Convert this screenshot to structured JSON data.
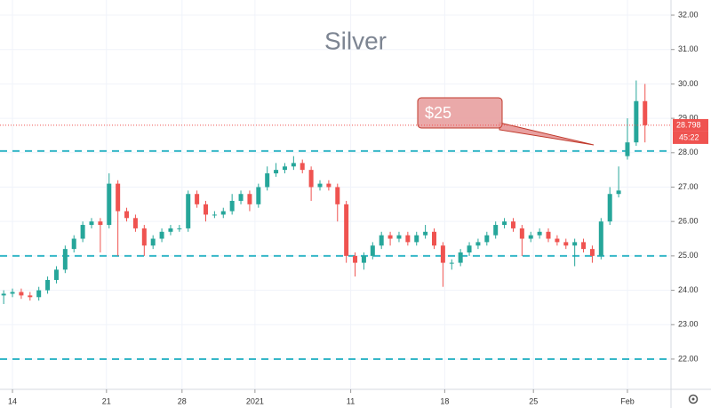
{
  "chart_data": {
    "type": "candlestick",
    "title": "Silver",
    "x": [
      -1,
      0,
      1,
      2,
      3,
      4,
      5,
      6,
      7,
      8,
      9,
      10,
      11,
      12,
      13,
      14,
      15,
      16,
      17,
      18,
      19,
      20,
      21,
      22,
      23,
      24,
      25,
      26,
      27,
      28,
      29,
      30,
      31,
      32,
      33,
      34,
      35,
      36,
      37,
      38,
      39,
      40,
      41,
      42,
      43,
      44,
      45,
      46,
      47,
      48,
      49,
      50,
      51,
      52,
      53,
      54,
      55,
      56,
      57,
      58,
      59,
      60,
      61,
      62,
      63,
      64,
      65,
      66,
      67,
      68,
      69,
      70,
      71,
      72
    ],
    "open": [
      23.85,
      23.9,
      23.95,
      23.85,
      23.8,
      24.0,
      24.3,
      24.6,
      25.2,
      25.5,
      25.9,
      26.0,
      25.9,
      27.1,
      26.3,
      26.1,
      25.8,
      25.3,
      25.5,
      25.7,
      25.8,
      25.8,
      26.8,
      26.5,
      26.2,
      26.2,
      26.3,
      26.6,
      26.8,
      26.5,
      27.0,
      27.4,
      27.5,
      27.6,
      27.7,
      27.5,
      27.0,
      27.1,
      27.0,
      26.5,
      25.0,
      24.8,
      25.0,
      25.3,
      25.6,
      25.5,
      25.6,
      25.4,
      25.6,
      25.7,
      25.3,
      24.8,
      24.8,
      25.1,
      25.3,
      25.4,
      25.6,
      25.9,
      26.0,
      25.8,
      25.5,
      25.6,
      25.7,
      25.5,
      25.4,
      25.3,
      25.4,
      25.2,
      25.0,
      26.0,
      26.8,
      27.9,
      28.3,
      29.5
    ],
    "high": [
      24.0,
      24.05,
      24.05,
      23.95,
      24.1,
      24.4,
      24.7,
      25.3,
      25.6,
      26.0,
      26.1,
      26.1,
      27.4,
      27.2,
      26.4,
      26.2,
      25.9,
      25.6,
      25.8,
      25.9,
      25.9,
      26.9,
      26.9,
      26.6,
      26.3,
      26.4,
      26.8,
      26.9,
      26.9,
      27.1,
      27.6,
      27.7,
      27.7,
      27.9,
      27.8,
      27.6,
      27.2,
      27.2,
      27.1,
      26.6,
      25.1,
      25.1,
      25.4,
      25.7,
      25.7,
      25.7,
      25.7,
      25.7,
      25.9,
      25.8,
      25.4,
      24.9,
      25.2,
      25.4,
      25.5,
      25.7,
      26.0,
      26.1,
      26.1,
      25.9,
      25.7,
      25.8,
      25.8,
      25.6,
      25.5,
      25.5,
      25.5,
      25.3,
      26.1,
      27.0,
      27.6,
      29.0,
      30.1,
      30.0
    ],
    "low": [
      23.6,
      23.8,
      23.75,
      23.7,
      23.7,
      23.9,
      24.2,
      24.5,
      25.1,
      25.4,
      25.8,
      25.1,
      25.8,
      25.0,
      26.0,
      25.7,
      25.0,
      25.2,
      25.4,
      25.6,
      25.7,
      25.7,
      26.4,
      26.0,
      26.1,
      26.1,
      26.2,
      26.5,
      26.3,
      26.4,
      26.9,
      27.3,
      27.4,
      27.5,
      27.4,
      26.6,
      26.9,
      26.9,
      26.0,
      24.8,
      24.4,
      24.6,
      24.9,
      25.2,
      25.3,
      25.4,
      25.3,
      25.3,
      25.5,
      25.2,
      24.1,
      24.6,
      24.7,
      25.0,
      25.2,
      25.3,
      25.5,
      25.8,
      25.7,
      25.0,
      25.4,
      25.5,
      25.4,
      25.3,
      25.2,
      24.7,
      25.1,
      24.8,
      24.9,
      25.9,
      26.7,
      27.8,
      28.2,
      28.3
    ],
    "close": [
      23.9,
      23.95,
      23.85,
      23.8,
      24.0,
      24.3,
      24.6,
      25.2,
      25.5,
      25.9,
      26.0,
      25.9,
      27.1,
      26.3,
      26.1,
      25.8,
      25.3,
      25.5,
      25.7,
      25.8,
      25.8,
      26.8,
      26.5,
      26.2,
      26.2,
      26.3,
      26.6,
      26.8,
      26.5,
      27.0,
      27.4,
      27.5,
      27.6,
      27.7,
      27.5,
      27.0,
      27.1,
      27.0,
      26.5,
      25.0,
      24.8,
      25.0,
      25.3,
      25.6,
      25.5,
      25.6,
      25.4,
      25.6,
      25.7,
      25.3,
      24.8,
      24.8,
      25.1,
      25.3,
      25.4,
      25.6,
      25.9,
      26.0,
      25.8,
      25.5,
      25.6,
      25.7,
      25.5,
      25.4,
      25.3,
      25.4,
      25.2,
      25.0,
      26.0,
      26.8,
      26.9,
      28.3,
      29.5,
      28.8
    ],
    "up_color": "#26a69a",
    "down_color": "#ef5350",
    "xlim": [
      -1.42,
      74.96
    ],
    "xticks": [
      {
        "value": 0,
        "label": "14"
      },
      {
        "value": 10.7,
        "label": "21"
      },
      {
        "value": 19.3,
        "label": "28"
      },
      {
        "value": 27.6,
        "label": "2021"
      },
      {
        "value": 38.5,
        "label": "11"
      },
      {
        "value": 49.2,
        "label": "18"
      },
      {
        "value": 59.3,
        "label": "25"
      },
      {
        "value": 70.0,
        "label": "Feb"
      }
    ],
    "ylim": [
      21.12,
      32.44
    ],
    "yticks": [
      {
        "value": 22,
        "label": "22.00"
      },
      {
        "value": 23,
        "label": "23.00"
      },
      {
        "value": 24,
        "label": "24.00"
      },
      {
        "value": 25,
        "label": "25.00"
      },
      {
        "value": 26,
        "label": "26.00"
      },
      {
        "value": 27,
        "label": "27.00"
      },
      {
        "value": 28,
        "label": "28.00"
      },
      {
        "value": 29,
        "label": "29.00"
      },
      {
        "value": 30,
        "label": "30.00"
      },
      {
        "value": 31,
        "label": "31.00"
      },
      {
        "value": 32,
        "label": "32.00"
      }
    ],
    "grid": true,
    "hlines": [
      28.05,
      25.0,
      22.0
    ],
    "hline_color": "#36b7c8",
    "last_price": 28.798,
    "countdown": "45:22",
    "annotation": "$25"
  }
}
